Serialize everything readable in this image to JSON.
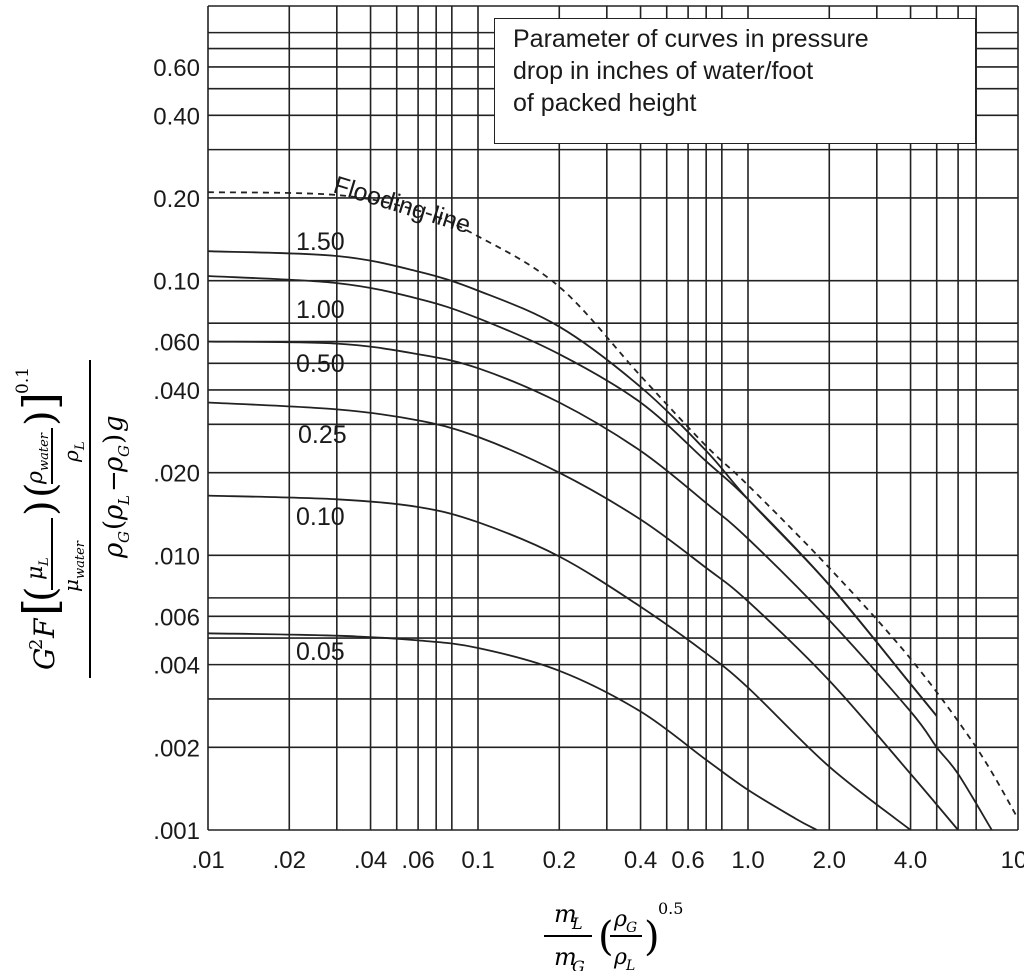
{
  "chart_data": {
    "type": "line",
    "xscale": "log",
    "yscale": "log",
    "xlim": [
      0.01,
      10
    ],
    "ylim": [
      0.001,
      1.0
    ],
    "x_tick_labels": [
      {
        "value": 0.01,
        "label": ".01"
      },
      {
        "value": 0.02,
        "label": ".02"
      },
      {
        "value": 0.04,
        "label": ".04"
      },
      {
        "value": 0.06,
        "label": ".06"
      },
      {
        "value": 0.1,
        "label": "0.1"
      },
      {
        "value": 0.2,
        "label": "0.2"
      },
      {
        "value": 0.4,
        "label": "0.4"
      },
      {
        "value": 0.6,
        "label": "0.6"
      },
      {
        "value": 1.0,
        "label": "1.0"
      },
      {
        "value": 2.0,
        "label": "2.0"
      },
      {
        "value": 4.0,
        "label": "4.0"
      },
      {
        "value": 10,
        "label": "10"
      }
    ],
    "y_tick_labels": [
      {
        "value": 0.001,
        "label": ".001"
      },
      {
        "value": 0.002,
        "label": ".002"
      },
      {
        "value": 0.004,
        "label": ".004"
      },
      {
        "value": 0.006,
        "label": ".006"
      },
      {
        "value": 0.01,
        "label": ".010"
      },
      {
        "value": 0.02,
        "label": ".020"
      },
      {
        "value": 0.04,
        "label": ".040"
      },
      {
        "value": 0.06,
        "label": ".060"
      },
      {
        "value": 0.1,
        "label": "0.10"
      },
      {
        "value": 0.2,
        "label": "0.20"
      },
      {
        "value": 0.4,
        "label": "0.40"
      },
      {
        "value": 0.6,
        "label": "0.60"
      }
    ],
    "x_gridlines": [
      0.01,
      0.02,
      0.03,
      0.04,
      0.05,
      0.06,
      0.07,
      0.08,
      0.1,
      0.2,
      0.3,
      0.4,
      0.5,
      0.6,
      0.7,
      0.8,
      1.0,
      2.0,
      3.0,
      4.0,
      5.0,
      6.0,
      7.0,
      10
    ],
    "y_gridlines": [
      0.001,
      0.002,
      0.003,
      0.004,
      0.005,
      0.006,
      0.007,
      0.01,
      0.02,
      0.03,
      0.04,
      0.05,
      0.06,
      0.07,
      0.1,
      0.2,
      0.3,
      0.4,
      0.5,
      0.6,
      0.7,
      0.8,
      1.0
    ],
    "legend_text": [
      "Parameter of curves in pressure",
      "drop in inches of water/foot",
      "of packed height"
    ],
    "series": [
      {
        "name": "Flooding line",
        "label": "Flooding line",
        "style": "dashed",
        "points": [
          [
            0.01,
            0.21
          ],
          [
            0.03,
            0.205
          ],
          [
            0.06,
            0.18
          ],
          [
            0.1,
            0.145
          ],
          [
            0.2,
            0.095
          ],
          [
            0.4,
            0.045
          ],
          [
            0.7,
            0.025
          ],
          [
            1.0,
            0.018
          ],
          [
            2.0,
            0.009
          ],
          [
            4.0,
            0.0042
          ],
          [
            7.0,
            0.002
          ],
          [
            10,
            0.0011
          ]
        ]
      },
      {
        "name": "1.50",
        "label": "1.50",
        "style": "solid",
        "points": [
          [
            0.01,
            0.128
          ],
          [
            0.03,
            0.123
          ],
          [
            0.06,
            0.108
          ],
          [
            0.1,
            0.092
          ],
          [
            0.2,
            0.068
          ],
          [
            0.4,
            0.041
          ],
          [
            0.7,
            0.024
          ],
          [
            1.0,
            0.016
          ],
          [
            2.0,
            0.0078
          ],
          [
            4.0,
            0.0034
          ],
          [
            5.0,
            0.0026
          ]
        ]
      },
      {
        "name": "1.00",
        "label": "1.00",
        "style": "solid",
        "points": [
          [
            0.01,
            0.104
          ],
          [
            0.03,
            0.098
          ],
          [
            0.06,
            0.086
          ],
          [
            0.1,
            0.073
          ],
          [
            0.2,
            0.054
          ],
          [
            0.4,
            0.036
          ],
          [
            0.7,
            0.022
          ],
          [
            1.0,
            0.016
          ],
          [
            2.0,
            0.0078
          ],
          [
            4.0,
            0.0034
          ],
          [
            5.0,
            0.0026
          ]
        ]
      },
      {
        "name": "0.50",
        "label": "0.50",
        "style": "solid",
        "points": [
          [
            0.01,
            0.06
          ],
          [
            0.03,
            0.059
          ],
          [
            0.06,
            0.054
          ],
          [
            0.1,
            0.048
          ],
          [
            0.2,
            0.036
          ],
          [
            0.4,
            0.024
          ],
          [
            0.7,
            0.0155
          ],
          [
            1.0,
            0.0115
          ],
          [
            2.0,
            0.0058
          ],
          [
            4.0,
            0.0027
          ],
          [
            5.0,
            0.002
          ],
          [
            6.0,
            0.0016
          ],
          [
            8.0,
            0.001
          ]
        ]
      },
      {
        "name": "0.25",
        "label": "0.25",
        "style": "solid",
        "points": [
          [
            0.01,
            0.036
          ],
          [
            0.03,
            0.034
          ],
          [
            0.06,
            0.031
          ],
          [
            0.1,
            0.027
          ],
          [
            0.2,
            0.02
          ],
          [
            0.4,
            0.0135
          ],
          [
            0.7,
            0.009
          ],
          [
            1.0,
            0.0068
          ],
          [
            2.0,
            0.0035
          ],
          [
            4.0,
            0.0016
          ],
          [
            6.0,
            0.001
          ]
        ]
      },
      {
        "name": "0.10",
        "label": "0.10",
        "style": "solid",
        "points": [
          [
            0.01,
            0.0165
          ],
          [
            0.03,
            0.016
          ],
          [
            0.06,
            0.015
          ],
          [
            0.1,
            0.0132
          ],
          [
            0.2,
            0.0099
          ],
          [
            0.4,
            0.0065
          ],
          [
            0.7,
            0.0044
          ],
          [
            1.0,
            0.0033
          ],
          [
            2.0,
            0.0017
          ],
          [
            4.0,
            0.001
          ]
        ]
      },
      {
        "name": "0.05",
        "label": "0.05",
        "style": "solid",
        "points": [
          [
            0.01,
            0.0052
          ],
          [
            0.03,
            0.0051
          ],
          [
            0.06,
            0.0049
          ],
          [
            0.1,
            0.0046
          ],
          [
            0.2,
            0.0038
          ],
          [
            0.4,
            0.0027
          ],
          [
            0.7,
            0.0018
          ],
          [
            1.0,
            0.0014
          ],
          [
            1.5,
            0.0011
          ],
          [
            1.8,
            0.001
          ]
        ]
      }
    ],
    "xlabel": "m_L/m_G (ρ_G/ρ_L)^0.5",
    "ylabel": "G²F[(μ_L/μ_water)(ρ_water/ρ_L)]^0.1 / ρ_G(ρ_L − ρ_G)g"
  }
}
